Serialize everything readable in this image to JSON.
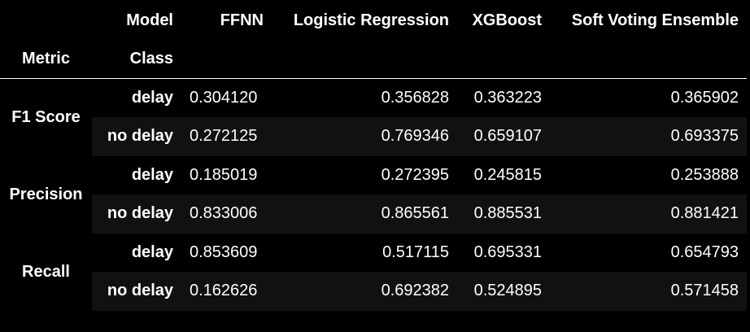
{
  "table": {
    "header_row1": {
      "index_label": "Model",
      "columns": [
        "FFNN",
        "Logistic Regression",
        "XGBoost",
        "Soft Voting Ensemble"
      ]
    },
    "header_row2": {
      "metric_label": "Metric",
      "class_label": "Class"
    },
    "metrics": [
      {
        "name": "F1 Score",
        "rows": [
          {
            "class": "delay",
            "values": [
              "0.304120",
              "0.356828",
              "0.363223",
              "0.365902"
            ]
          },
          {
            "class": "no delay",
            "values": [
              "0.272125",
              "0.769346",
              "0.659107",
              "0.693375"
            ]
          }
        ]
      },
      {
        "name": "Precision",
        "rows": [
          {
            "class": "delay",
            "values": [
              "0.185019",
              "0.272395",
              "0.245815",
              "0.253888"
            ]
          },
          {
            "class": "no delay",
            "values": [
              "0.833006",
              "0.865561",
              "0.885531",
              "0.881421"
            ]
          }
        ]
      },
      {
        "name": "Recall",
        "rows": [
          {
            "class": "delay",
            "values": [
              "0.853609",
              "0.517115",
              "0.695331",
              "0.654793"
            ]
          },
          {
            "class": "no delay",
            "values": [
              "0.162626",
              "0.692382",
              "0.524895",
              "0.571458"
            ]
          }
        ]
      }
    ]
  }
}
